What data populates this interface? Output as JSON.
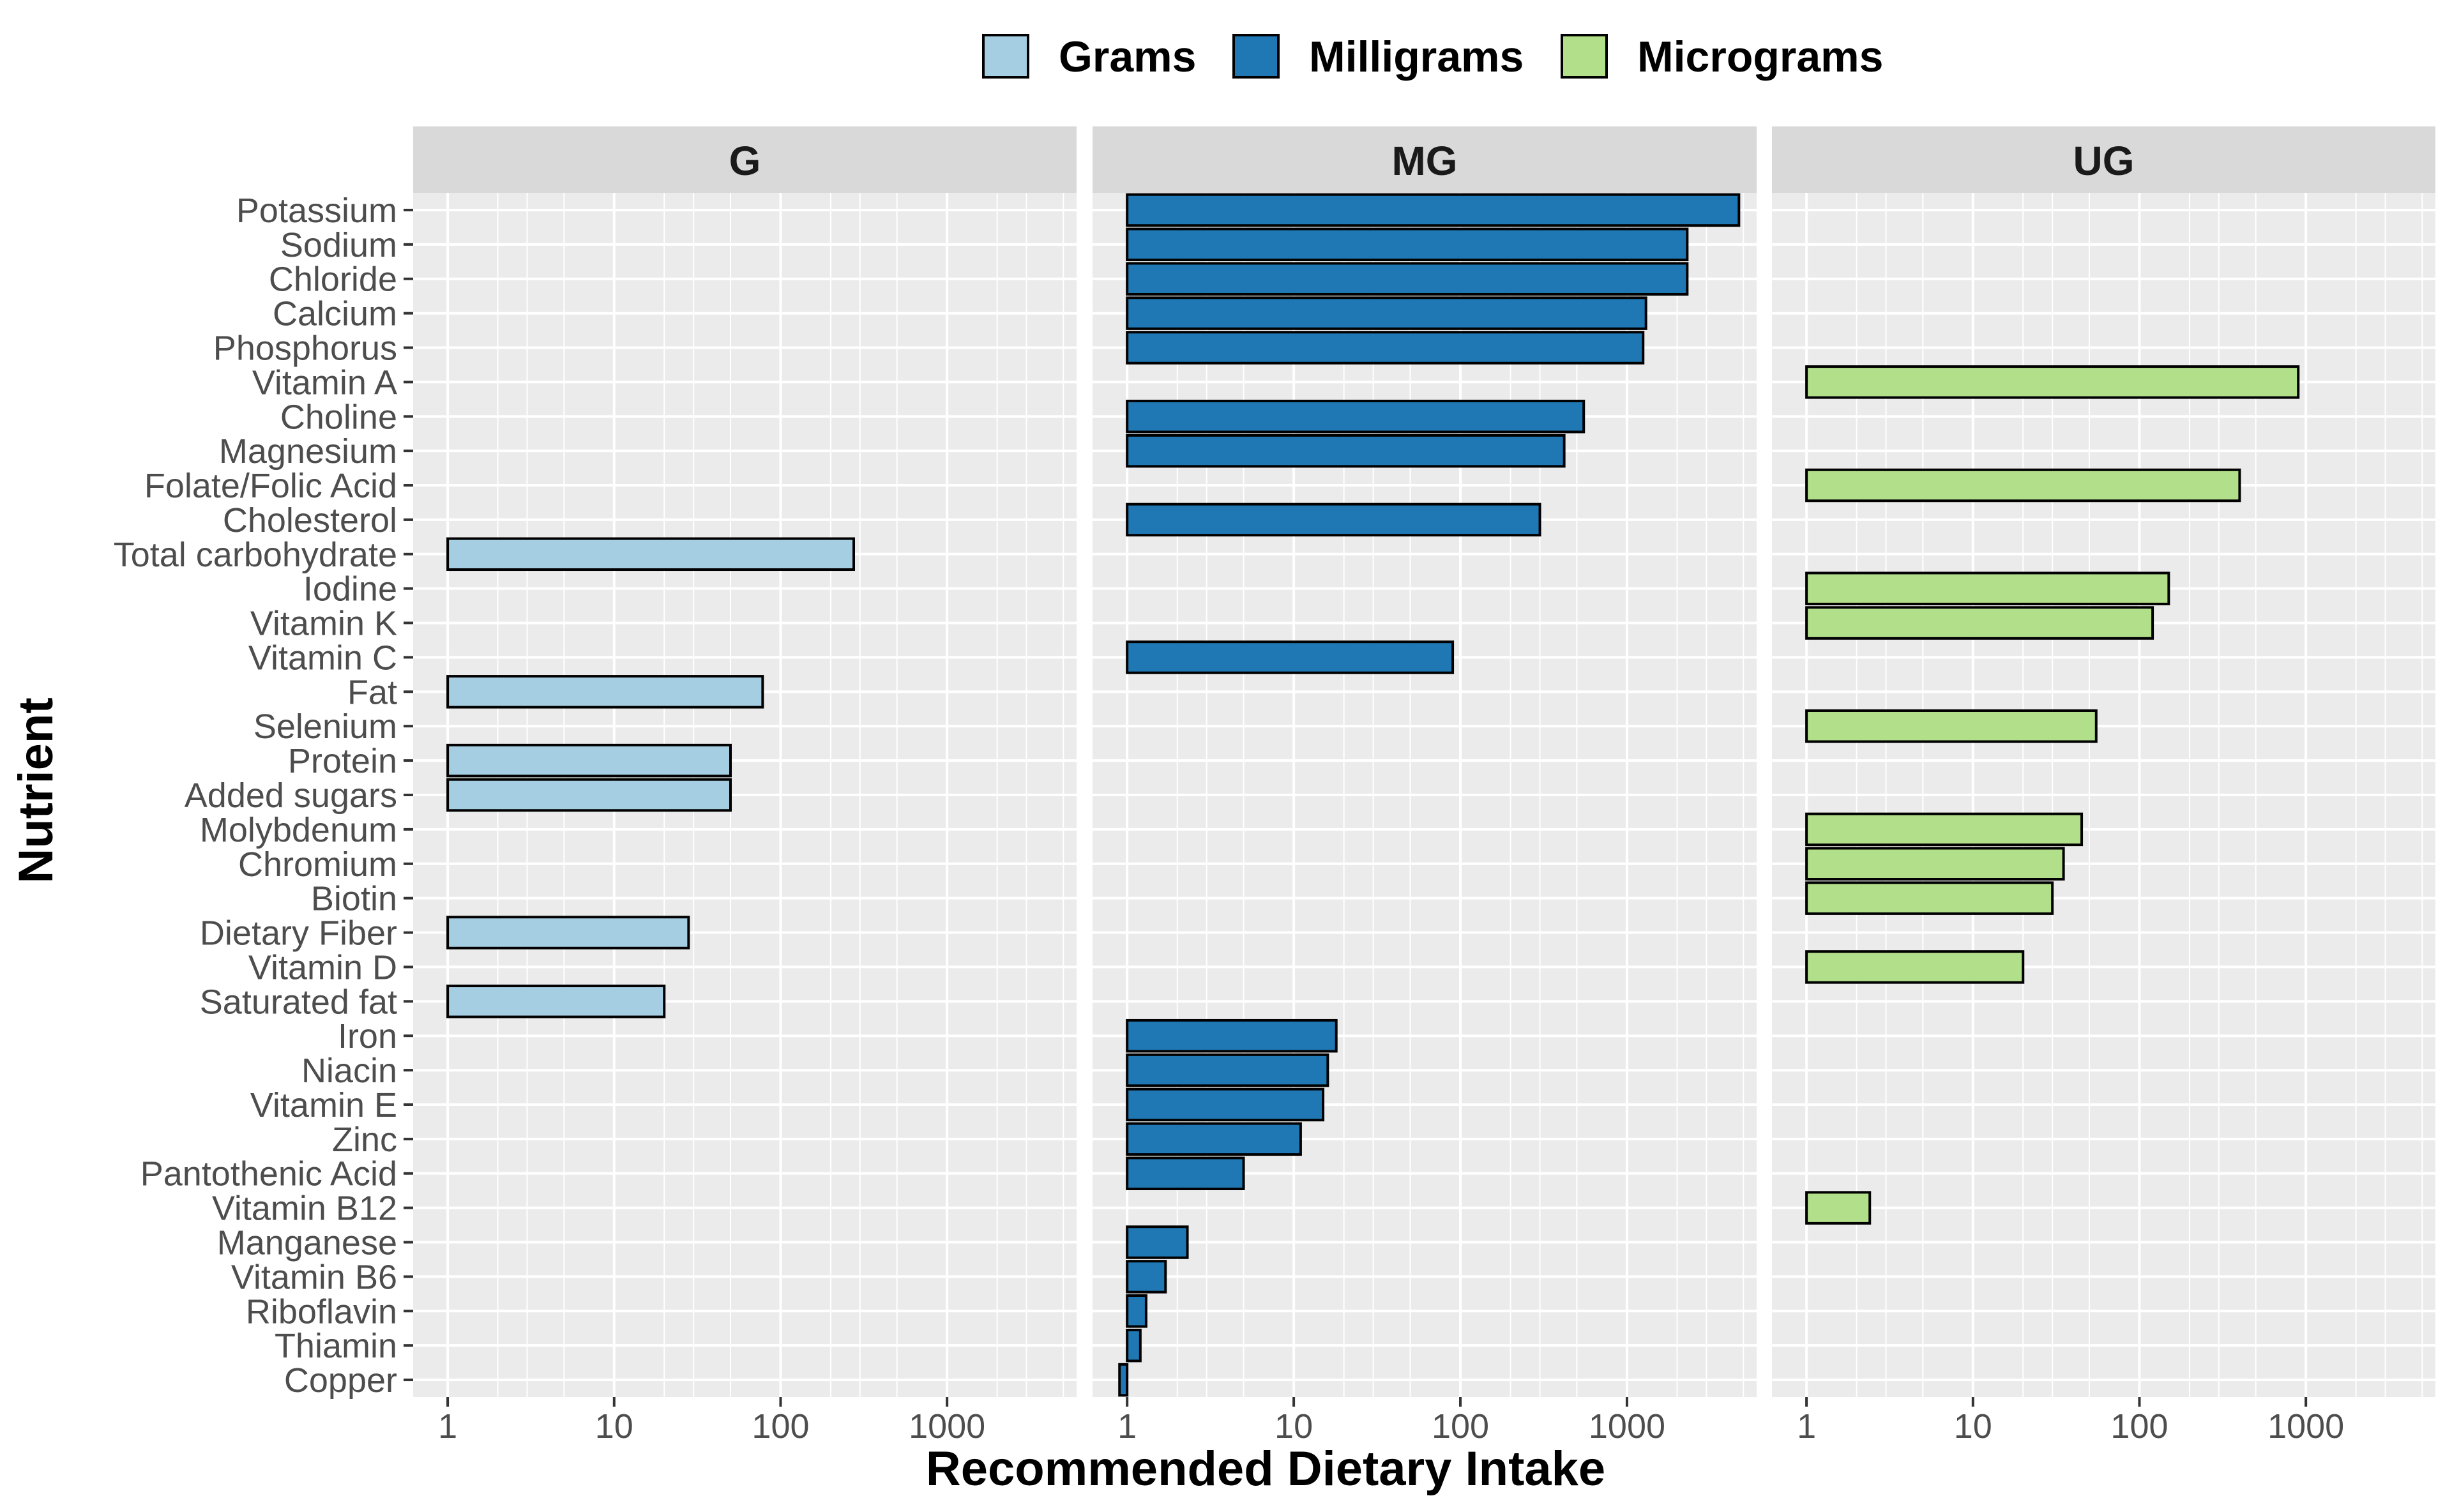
{
  "chart_data": {
    "type": "bar",
    "orientation": "horizontal",
    "xlabel": "Recommended Dietary Intake",
    "ylabel": "Nutrient",
    "x_scale": "log10",
    "x_ticks": [
      "1",
      "10",
      "100",
      "1000"
    ],
    "xlim": [
      0.62,
      6000
    ],
    "grid": true,
    "legend_position": "top",
    "legend": [
      {
        "key": "G",
        "label": "Grams",
        "color": "#a6cee3"
      },
      {
        "key": "MG",
        "label": "Milligrams",
        "color": "#1f78b4"
      },
      {
        "key": "UG",
        "label": "Micrograms",
        "color": "#b2df8a"
      }
    ],
    "facets": [
      "G",
      "MG",
      "UG"
    ],
    "categories": [
      "Potassium",
      "Sodium",
      "Chloride",
      "Calcium",
      "Phosphorus",
      "Vitamin A",
      "Choline",
      "Magnesium",
      "Folate/Folic Acid",
      "Cholesterol",
      "Total carbohydrate",
      "Iodine",
      "Vitamin K",
      "Vitamin C",
      "Fat",
      "Selenium",
      "Protein",
      "Added sugars",
      "Molybdenum",
      "Chromium",
      "Biotin",
      "Dietary Fiber",
      "Vitamin D",
      "Saturated fat",
      "Iron",
      "Niacin",
      "Vitamin E",
      "Zinc",
      "Pantothenic Acid",
      "Vitamin B12",
      "Manganese",
      "Vitamin B6",
      "Riboflavin",
      "Thiamin",
      "Copper"
    ],
    "bars": [
      {
        "nutrient": "Potassium",
        "unit": "MG",
        "value": 4700
      },
      {
        "nutrient": "Sodium",
        "unit": "MG",
        "value": 2300
      },
      {
        "nutrient": "Chloride",
        "unit": "MG",
        "value": 2300
      },
      {
        "nutrient": "Calcium",
        "unit": "MG",
        "value": 1300
      },
      {
        "nutrient": "Phosphorus",
        "unit": "MG",
        "value": 1250
      },
      {
        "nutrient": "Vitamin A",
        "unit": "UG",
        "value": 900
      },
      {
        "nutrient": "Choline",
        "unit": "MG",
        "value": 550
      },
      {
        "nutrient": "Magnesium",
        "unit": "MG",
        "value": 420
      },
      {
        "nutrient": "Folate/Folic Acid",
        "unit": "UG",
        "value": 400
      },
      {
        "nutrient": "Cholesterol",
        "unit": "MG",
        "value": 300
      },
      {
        "nutrient": "Total carbohydrate",
        "unit": "G",
        "value": 275
      },
      {
        "nutrient": "Iodine",
        "unit": "UG",
        "value": 150
      },
      {
        "nutrient": "Vitamin K",
        "unit": "UG",
        "value": 120
      },
      {
        "nutrient": "Vitamin C",
        "unit": "MG",
        "value": 90
      },
      {
        "nutrient": "Fat",
        "unit": "G",
        "value": 78
      },
      {
        "nutrient": "Selenium",
        "unit": "UG",
        "value": 55
      },
      {
        "nutrient": "Protein",
        "unit": "G",
        "value": 50
      },
      {
        "nutrient": "Added sugars",
        "unit": "G",
        "value": 50
      },
      {
        "nutrient": "Molybdenum",
        "unit": "UG",
        "value": 45
      },
      {
        "nutrient": "Chromium",
        "unit": "UG",
        "value": 35
      },
      {
        "nutrient": "Biotin",
        "unit": "UG",
        "value": 30
      },
      {
        "nutrient": "Dietary Fiber",
        "unit": "G",
        "value": 28
      },
      {
        "nutrient": "Vitamin D",
        "unit": "UG",
        "value": 20
      },
      {
        "nutrient": "Saturated fat",
        "unit": "G",
        "value": 20
      },
      {
        "nutrient": "Iron",
        "unit": "MG",
        "value": 18
      },
      {
        "nutrient": "Niacin",
        "unit": "MG",
        "value": 16
      },
      {
        "nutrient": "Vitamin E",
        "unit": "MG",
        "value": 15
      },
      {
        "nutrient": "Zinc",
        "unit": "MG",
        "value": 11
      },
      {
        "nutrient": "Pantothenic Acid",
        "unit": "MG",
        "value": 5
      },
      {
        "nutrient": "Vitamin B12",
        "unit": "UG",
        "value": 2.4
      },
      {
        "nutrient": "Manganese",
        "unit": "MG",
        "value": 2.3
      },
      {
        "nutrient": "Vitamin B6",
        "unit": "MG",
        "value": 1.7
      },
      {
        "nutrient": "Riboflavin",
        "unit": "MG",
        "value": 1.3
      },
      {
        "nutrient": "Thiamin",
        "unit": "MG",
        "value": 1.2
      },
      {
        "nutrient": "Copper",
        "unit": "MG",
        "value": 0.9
      }
    ]
  }
}
